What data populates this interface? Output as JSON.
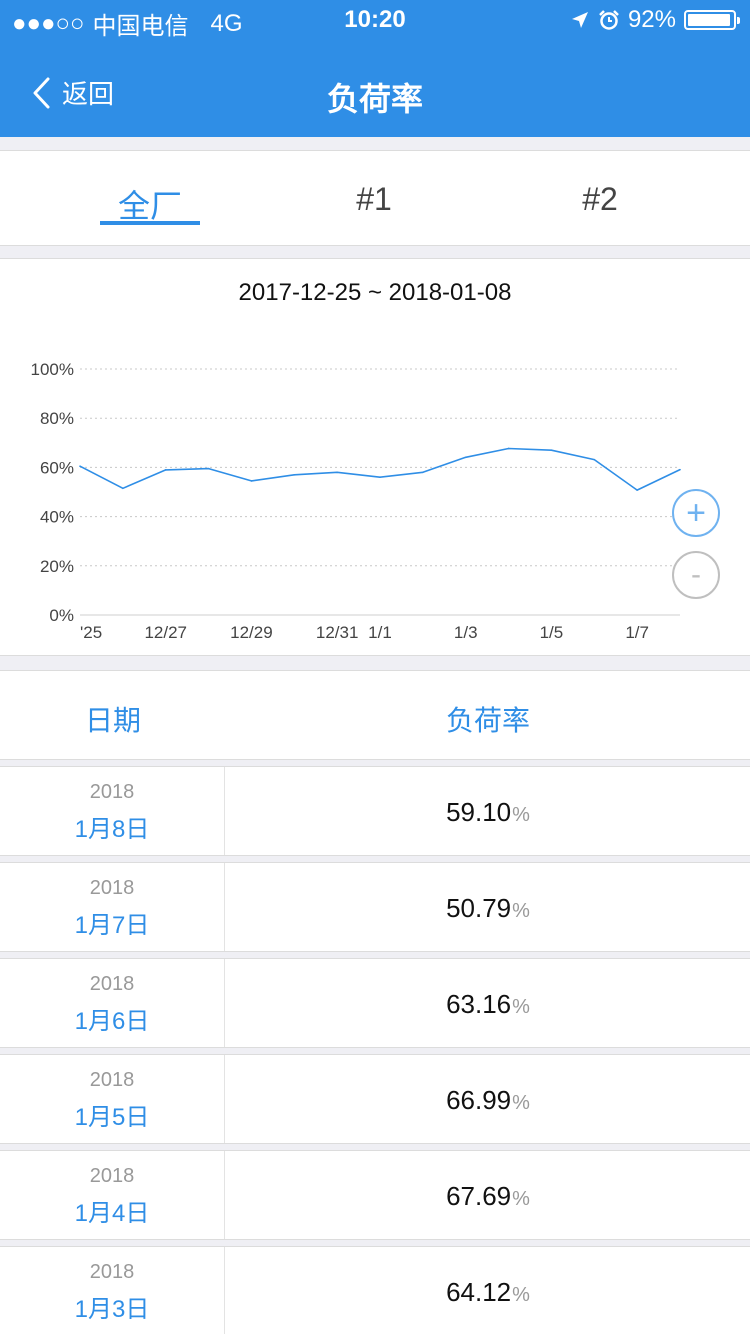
{
  "status_bar": {
    "signal": "●●●○○",
    "carrier": "中国电信",
    "network": "4G",
    "time": "10:20",
    "battery_text": "92%",
    "battery_level": 0.92,
    "icons": [
      "location-arrow-icon",
      "alarm-icon",
      "battery-icon"
    ]
  },
  "nav": {
    "back_label": "返回",
    "title": "负荷率"
  },
  "tabs": [
    {
      "label": "全厂",
      "active": true
    },
    {
      "label": "#1",
      "active": false
    },
    {
      "label": "#2",
      "active": false
    }
  ],
  "chart": {
    "range_label": "2017-12-25 ~ 2018-01-08",
    "zoom_in": "+",
    "zoom_out": "-"
  },
  "chart_data": {
    "type": "line",
    "x": [
      "12/25",
      "12/26",
      "12/27",
      "12/28",
      "12/29",
      "12/30",
      "12/31",
      "1/1",
      "1/2",
      "1/3",
      "1/4",
      "1/5",
      "1/6",
      "1/7",
      "1/8"
    ],
    "series": [
      {
        "values": [
          60.5,
          51.5,
          59.0,
          59.5,
          54.5,
          57.0,
          58.0,
          56.0,
          58.0,
          64.12,
          67.69,
          66.99,
          63.16,
          50.79,
          59.1
        ],
        "color": "#2f8ee6"
      }
    ],
    "x_tick_labels": [
      "'25",
      "12/27",
      "12/29",
      "12/31",
      "1/1",
      "1/3",
      "1/5",
      "1/7"
    ],
    "y_tick_labels": [
      "0%",
      "20%",
      "40%",
      "60%",
      "80%",
      "100%"
    ],
    "ylim": [
      0,
      100
    ],
    "grid": true,
    "legend": "none"
  },
  "table": {
    "headers": {
      "date": "日期",
      "rate": "负荷率"
    },
    "unit": "%",
    "rows": [
      {
        "year": "2018",
        "day": "1月8日",
        "value": "59.10"
      },
      {
        "year": "2018",
        "day": "1月7日",
        "value": "50.79"
      },
      {
        "year": "2018",
        "day": "1月6日",
        "value": "63.16"
      },
      {
        "year": "2018",
        "day": "1月5日",
        "value": "66.99"
      },
      {
        "year": "2018",
        "day": "1月4日",
        "value": "67.69"
      },
      {
        "year": "2018",
        "day": "1月3日",
        "value": "64.12"
      }
    ]
  }
}
